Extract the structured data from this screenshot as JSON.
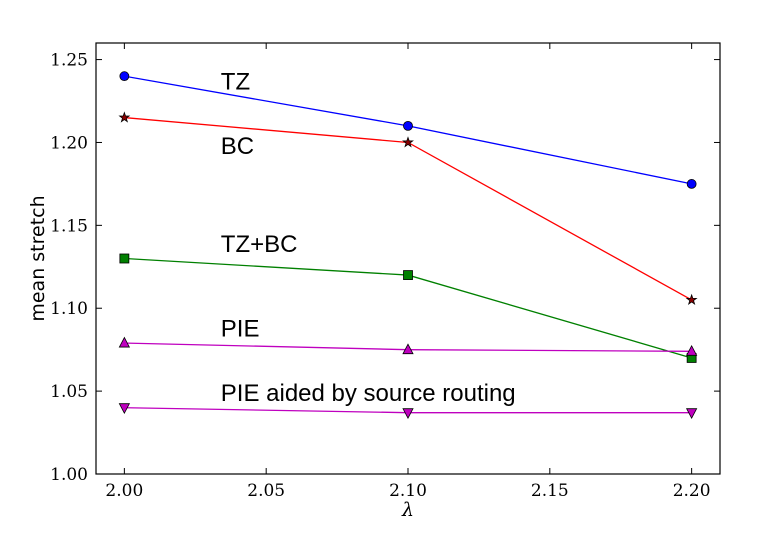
{
  "chart_data": {
    "type": "line",
    "xlabel": "λ",
    "ylabel": "mean stretch",
    "xlim": [
      1.99,
      2.21
    ],
    "ylim": [
      1.0,
      1.26
    ],
    "xticks": [
      "2.00",
      "2.05",
      "2.10",
      "2.15",
      "2.20"
    ],
    "yticks": [
      "1.00",
      "1.05",
      "1.10",
      "1.15",
      "1.20",
      "1.25"
    ],
    "grid": false,
    "x": [
      2.0,
      2.1,
      2.2
    ],
    "series": [
      {
        "name": "TZ",
        "values": [
          1.24,
          1.21,
          1.175
        ],
        "color": "#0000ff",
        "marker": "circle",
        "marker_color": "#0000ff"
      },
      {
        "name": "BC",
        "values": [
          1.215,
          1.2,
          1.105
        ],
        "color": "#ff0000",
        "marker": "star",
        "marker_color": "#8b0000"
      },
      {
        "name": "TZ+BC",
        "values": [
          1.13,
          1.12,
          1.07
        ],
        "color": "#008000",
        "marker": "square",
        "marker_color": "#008000"
      },
      {
        "name": "PIE",
        "values": [
          1.079,
          1.075,
          1.074
        ],
        "color": "#bf00bf",
        "marker": "triangle-up",
        "marker_color": "#bf00bf"
      },
      {
        "name": "PIE aided by source routing",
        "values": [
          1.04,
          1.037,
          1.037
        ],
        "color": "#bf00bf",
        "marker": "triangle-down",
        "marker_color": "#bf00bf"
      }
    ],
    "annotations": [
      {
        "text": "TZ",
        "x": 2.034,
        "y": 1.232
      },
      {
        "text": "BC",
        "x": 2.034,
        "y": 1.193
      },
      {
        "text": "TZ+BC",
        "x": 2.034,
        "y": 1.134
      },
      {
        "text": "PIE",
        "x": 2.034,
        "y": 1.083
      },
      {
        "text": "PIE aided by source routing",
        "x": 2.034,
        "y": 1.044
      }
    ]
  }
}
